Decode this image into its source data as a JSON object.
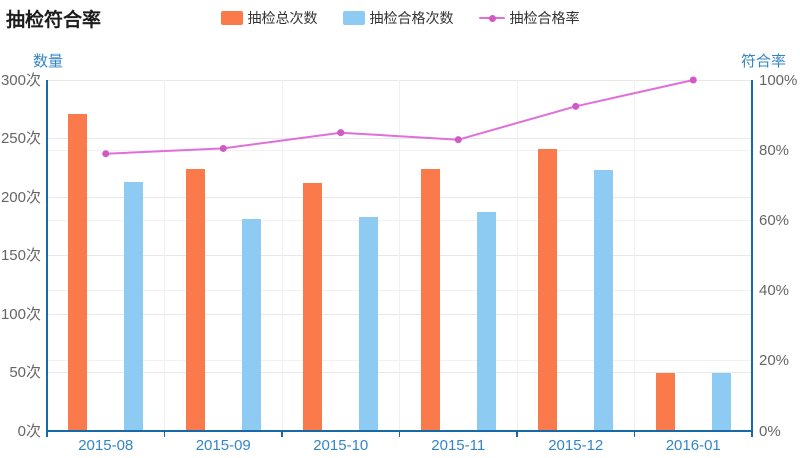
{
  "title": "抽检符合率",
  "legend": {
    "items": [
      "抽检总次数",
      "抽检合格次数",
      "抽检合格率"
    ]
  },
  "chart_data": {
    "type": "bar-line-combo",
    "title": "抽检符合率",
    "categories": [
      "2015-08",
      "2015-09",
      "2015-10",
      "2015-11",
      "2015-12",
      "2016-01"
    ],
    "series": [
      {
        "name": "抽检总次数",
        "type": "bar",
        "axis": "left",
        "color": "#fb7a4c",
        "values": [
          271,
          224,
          212,
          224,
          241,
          50
        ]
      },
      {
        "name": "抽检合格次数",
        "type": "bar",
        "axis": "left",
        "color": "#8ecbf3",
        "values": [
          213,
          181,
          183,
          187,
          223,
          50
        ]
      },
      {
        "name": "抽检合格率",
        "type": "line",
        "axis": "right",
        "color": "#e06fd8",
        "dot_color": "#d158c5",
        "values": [
          79,
          80.5,
          85,
          83,
          92.5,
          100
        ]
      }
    ],
    "left_axis": {
      "name": "数量",
      "min": 0,
      "max": 300,
      "ticks": [
        "0次",
        "50次",
        "100次",
        "150次",
        "200次",
        "250次",
        "300次"
      ],
      "grid_values": [
        50,
        100,
        150,
        200,
        250,
        300
      ]
    },
    "right_axis": {
      "name": "符合率",
      "min": 0,
      "max": 100,
      "ticks": [
        "0%",
        "20%",
        "40%",
        "60%",
        "80%",
        "100%"
      ],
      "grid_values": [
        20,
        40,
        60,
        80
      ]
    },
    "legend_position": "top",
    "grid": true
  },
  "colors": {
    "axis_line": "#1869a8",
    "axis_label_blue": "#3585c5",
    "tick_text_grey": "#666666",
    "grid_major": "#e8e8e8",
    "grid_minor": "#f1f1f1",
    "bar_total": "#fb7a4c",
    "bar_passed": "#8ecbf3",
    "rate_line": "#e06fd8",
    "title_text": "#1c1c1c"
  }
}
